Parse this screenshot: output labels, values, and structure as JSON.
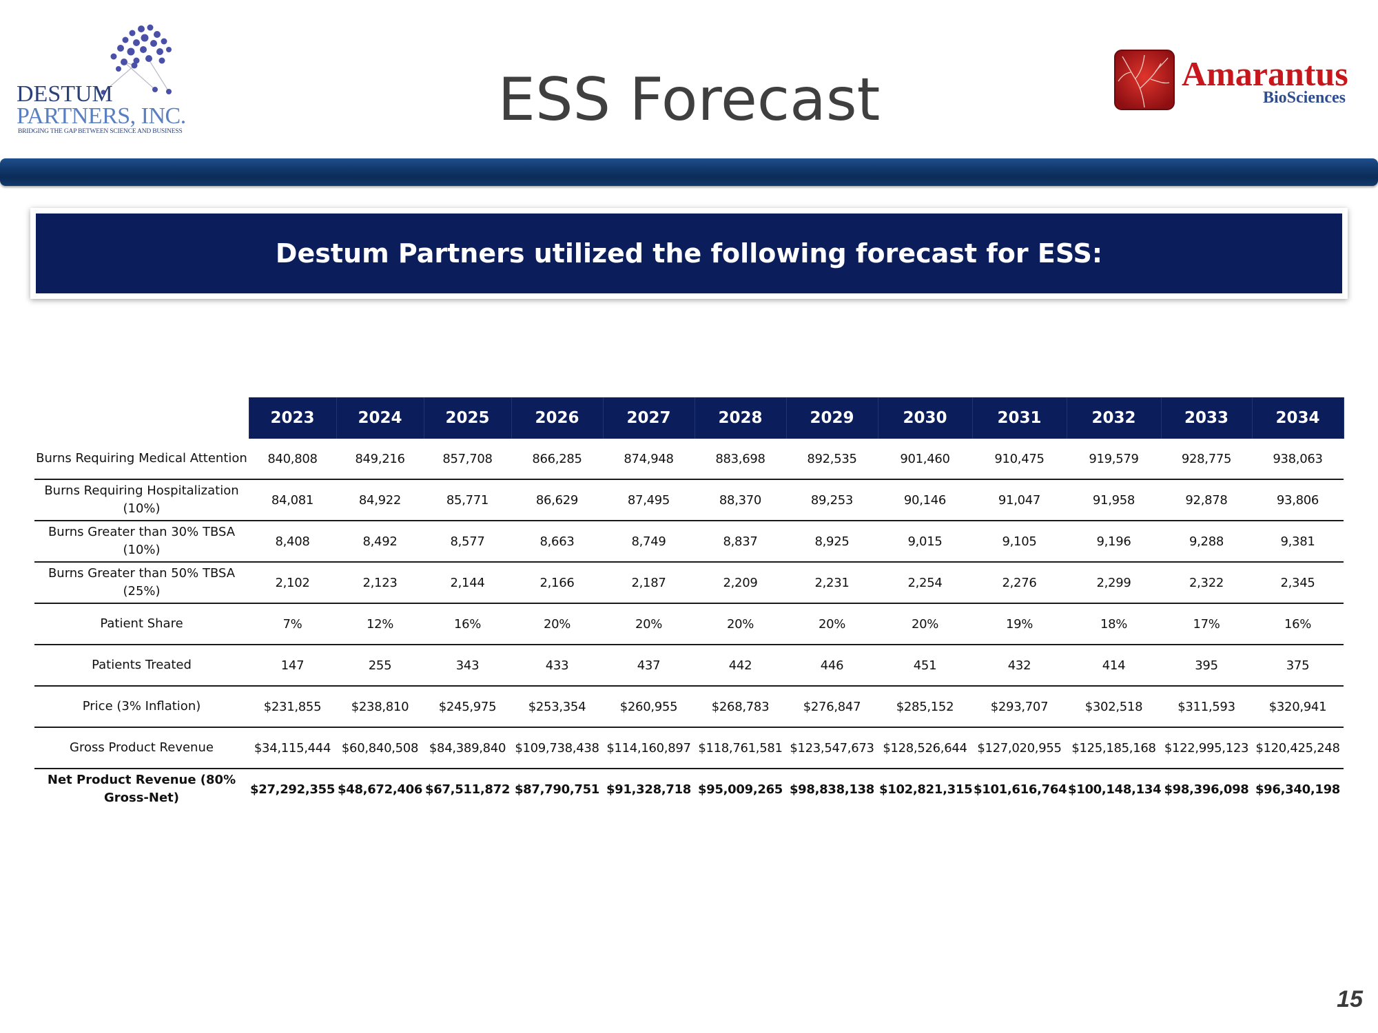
{
  "header": {
    "title": "ESS Forecast",
    "left_logo": {
      "name_line1": "DESTUM",
      "name_line2": "PARTNERS, INC.",
      "tagline": "BRIDGING THE GAP BETWEEN SCIENCE AND BUSINESS",
      "colors": {
        "dark": "#2b3f78",
        "light": "#5a7fc0",
        "molecule": "#4a4fa8"
      }
    },
    "right_logo": {
      "name": "Amarantus",
      "sub": "BioSciences",
      "colors": {
        "name": "#c8161d",
        "sub": "#2e4d8f",
        "icon": "#b5161b"
      }
    }
  },
  "banner": {
    "text": "Destum Partners utilized the following forecast for ESS:",
    "color": "#0b1e5b"
  },
  "table": {
    "years": [
      "2023",
      "2024",
      "2025",
      "2026",
      "2027",
      "2028",
      "2029",
      "2030",
      "2031",
      "2032",
      "2033",
      "2034"
    ],
    "rows": [
      {
        "label": "Burns Requiring Medical Attention",
        "values": [
          "840,808",
          "849,216",
          "857,708",
          "866,285",
          "874,948",
          "883,698",
          "892,535",
          "901,460",
          "910,475",
          "919,579",
          "928,775",
          "938,063"
        ]
      },
      {
        "label": "Burns Requiring Hospitalization (10%)",
        "values": [
          "84,081",
          "84,922",
          "85,771",
          "86,629",
          "87,495",
          "88,370",
          "89,253",
          "90,146",
          "91,047",
          "91,958",
          "92,878",
          "93,806"
        ]
      },
      {
        "label": "Burns Greater than 30% TBSA (10%)",
        "values": [
          "8,408",
          "8,492",
          "8,577",
          "8,663",
          "8,749",
          "8,837",
          "8,925",
          "9,015",
          "9,105",
          "9,196",
          "9,288",
          "9,381"
        ]
      },
      {
        "label": "Burns Greater than 50% TBSA (25%)",
        "values": [
          "2,102",
          "2,123",
          "2,144",
          "2,166",
          "2,187",
          "2,209",
          "2,231",
          "2,254",
          "2,276",
          "2,299",
          "2,322",
          "2,345"
        ]
      },
      {
        "label": "Patient Share",
        "values": [
          "7%",
          "12%",
          "16%",
          "20%",
          "20%",
          "20%",
          "20%",
          "20%",
          "19%",
          "18%",
          "17%",
          "16%"
        ]
      },
      {
        "label": "Patients Treated",
        "values": [
          "147",
          "255",
          "343",
          "433",
          "437",
          "442",
          "446",
          "451",
          "432",
          "414",
          "395",
          "375"
        ]
      },
      {
        "label": "Price (3% Inflation)",
        "values": [
          "$231,855",
          "$238,810",
          "$245,975",
          "$253,354",
          "$260,955",
          "$268,783",
          "$276,847",
          "$285,152",
          "$293,707",
          "$302,518",
          "$311,593",
          "$320,941"
        ]
      },
      {
        "label": "Gross Product Revenue",
        "values": [
          "$34,115,444",
          "$60,840,508",
          "$84,389,840",
          "$109,738,438",
          "$114,160,897",
          "$118,761,581",
          "$123,547,673",
          "$128,526,644",
          "$127,020,955",
          "$125,185,168",
          "$122,995,123",
          "$120,425,248"
        ]
      },
      {
        "label": "Net Product Revenue (80% Gross-Net)",
        "values": [
          "$27,292,355",
          "$48,672,406",
          "$67,511,872",
          "$87,790,751",
          "$91,328,718",
          "$95,009,265",
          "$98,838,138",
          "$102,821,315",
          "$101,616,764",
          "$100,148,134",
          "$98,396,098",
          "$96,340,198"
        ]
      }
    ]
  },
  "page_number": "15"
}
